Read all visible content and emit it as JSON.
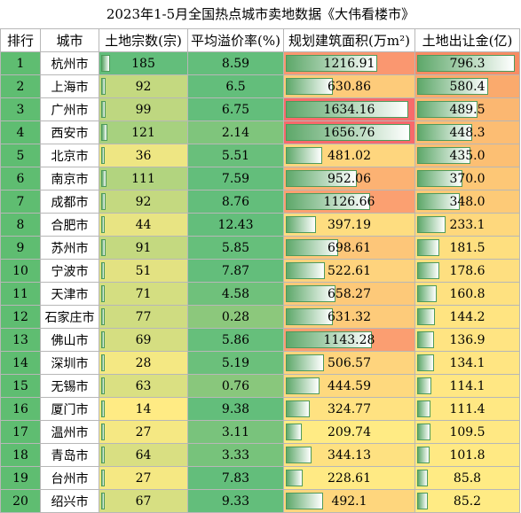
{
  "title": "2023年1-5月全国热点城市卖地数据《大伟看楼市》",
  "headers": [
    "排行",
    "城市",
    "土地宗数(宗)",
    "平均溢价率(%)",
    "规划建筑面积(万m²)",
    "土地出让金(亿)"
  ],
  "rows": [
    {
      "rank": "1",
      "city": "杭州市",
      "count": "185",
      "premium": "8.59",
      "area": "1216.91",
      "revenue": "796.3"
    },
    {
      "rank": "2",
      "city": "上海市",
      "count": "92",
      "premium": "6.5",
      "area": "630.86",
      "revenue": "580.4"
    },
    {
      "rank": "3",
      "city": "广州市",
      "count": "99",
      "premium": "6.75",
      "area": "1634.16",
      "revenue": "489.5"
    },
    {
      "rank": "4",
      "city": "西安市",
      "count": "121",
      "premium": "2.14",
      "area": "1656.76",
      "revenue": "448.3"
    },
    {
      "rank": "5",
      "city": "北京市",
      "count": "36",
      "premium": "5.51",
      "area": "481.02",
      "revenue": "435.0"
    },
    {
      "rank": "6",
      "city": "南京市",
      "count": "111",
      "premium": "7.59",
      "area": "952.06",
      "revenue": "370.0"
    },
    {
      "rank": "7",
      "city": "成都市",
      "count": "92",
      "premium": "8.76",
      "area": "1126.66",
      "revenue": "348.0"
    },
    {
      "rank": "8",
      "city": "合肥市",
      "count": "44",
      "premium": "12.43",
      "area": "397.19",
      "revenue": "233.1"
    },
    {
      "rank": "9",
      "city": "苏州市",
      "count": "91",
      "premium": "5.85",
      "area": "698.61",
      "revenue": "181.5"
    },
    {
      "rank": "10",
      "city": "宁波市",
      "count": "51",
      "premium": "7.87",
      "area": "522.61",
      "revenue": "178.6"
    },
    {
      "rank": "11",
      "city": "天津市",
      "count": "71",
      "premium": "4.58",
      "area": "658.27",
      "revenue": "160.8"
    },
    {
      "rank": "12",
      "city": "石家庄市",
      "count": "77",
      "premium": "0.28",
      "area": "631.32",
      "revenue": "144.2"
    },
    {
      "rank": "13",
      "city": "佛山市",
      "count": "69",
      "premium": "5.86",
      "area": "1143.28",
      "revenue": "136.9"
    },
    {
      "rank": "14",
      "city": "深圳市",
      "count": "28",
      "premium": "5.19",
      "area": "506.57",
      "revenue": "134.1"
    },
    {
      "rank": "15",
      "city": "无锡市",
      "count": "63",
      "premium": "0.76",
      "area": "444.59",
      "revenue": "114.1"
    },
    {
      "rank": "16",
      "city": "厦门市",
      "count": "14",
      "premium": "9.38",
      "area": "324.77",
      "revenue": "111.4"
    },
    {
      "rank": "17",
      "city": "温州市",
      "count": "27",
      "premium": "3.11",
      "area": "209.74",
      "revenue": "109.5"
    },
    {
      "rank": "18",
      "city": "青岛市",
      "count": "64",
      "premium": "3.33",
      "area": "344.13",
      "revenue": "101.8"
    },
    {
      "rank": "19",
      "city": "台州市",
      "count": "27",
      "premium": "7.83",
      "area": "228.61",
      "revenue": "85.8"
    },
    {
      "rank": "20",
      "city": "绍兴市",
      "count": "67",
      "premium": "9.33",
      "area": "492.1",
      "revenue": "85.2"
    }
  ]
}
